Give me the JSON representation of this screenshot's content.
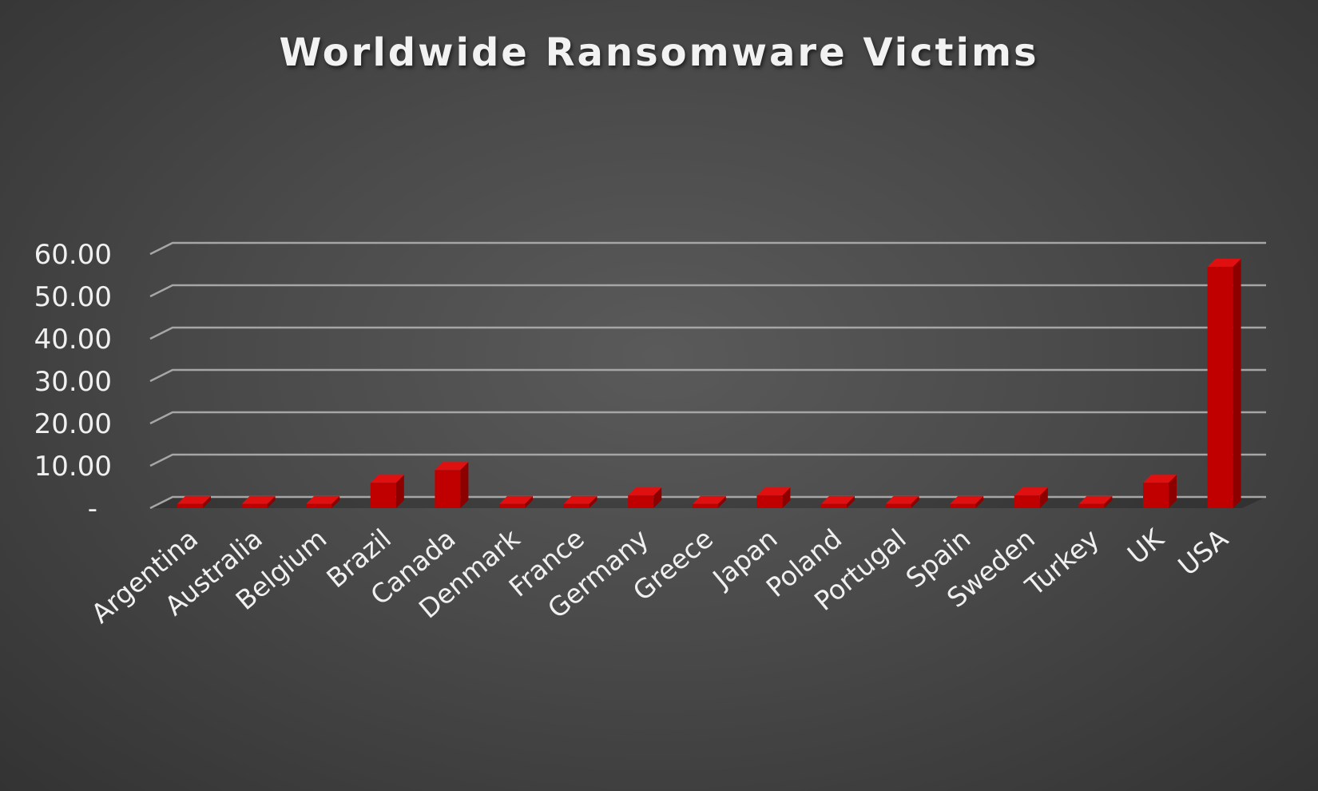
{
  "chart_data": {
    "type": "bar",
    "title": "Worldwide Ransomware Victims",
    "xlabel": "",
    "ylabel": "",
    "categories": [
      "Argentina",
      "Australia",
      "Belgium",
      "Brazil",
      "Canada",
      "Denmark",
      "France",
      "Germany",
      "Greece",
      "Japan",
      "Poland",
      "Portugal",
      "Spain",
      "Sweden",
      "Turkey",
      "UK",
      "USA"
    ],
    "values": [
      1,
      1,
      1,
      6,
      9,
      1,
      1,
      3,
      1,
      3,
      1,
      1,
      1,
      3,
      1,
      6,
      57
    ],
    "yticks": [
      "-",
      "10.00",
      "20.00",
      "30.00",
      "40.00",
      "50.00",
      "60.00"
    ],
    "ylim": [
      0,
      60
    ],
    "grid": true,
    "legend": "none",
    "style": "3d-column",
    "colors": {
      "bar_front": "#c00000",
      "bar_side": "#8c0000",
      "bar_top": "#e01010",
      "gridline": "#a6a6a6",
      "text": "#f0f0f0"
    }
  }
}
